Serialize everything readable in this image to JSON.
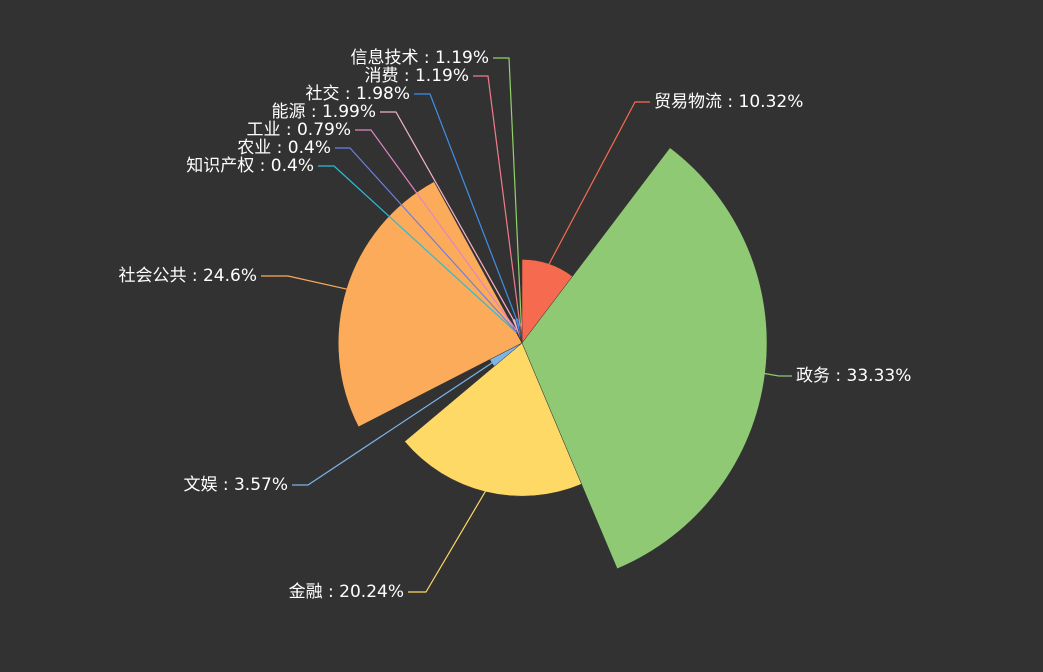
{
  "chart_data": {
    "type": "pie",
    "variant": "nightingale-rose-radius",
    "label_separator": " : ",
    "background": "#333233",
    "slices": [
      {
        "name": "贸易物流",
        "value": 10.32,
        "label": "10.32%",
        "color": "#f66b4f"
      },
      {
        "name": "政务",
        "value": 33.33,
        "label": "33.33%",
        "color": "#8fc974"
      },
      {
        "name": "金融",
        "value": 20.24,
        "label": "20.24%",
        "color": "#ffd966"
      },
      {
        "name": "文娱",
        "value": 3.57,
        "label": "3.57%",
        "color": "#7db4e6"
      },
      {
        "name": "社会公共",
        "value": 24.6,
        "label": "24.6%",
        "color": "#fbab59"
      },
      {
        "name": "知识产权",
        "value": 0.4,
        "label": "0.4%",
        "color": "#2bbbd8"
      },
      {
        "name": "农业",
        "value": 0.4,
        "label": "0.4%",
        "color": "#6f7fe0"
      },
      {
        "name": "工业",
        "value": 0.79,
        "label": "0.79%",
        "color": "#e085c8"
      },
      {
        "name": "能源",
        "value": 1.99,
        "label": "1.99%",
        "color": "#f5b3c8"
      },
      {
        "name": "社交",
        "value": 1.98,
        "label": "1.98%",
        "color": "#3d8fe8"
      },
      {
        "name": "消费",
        "value": 1.19,
        "label": "1.19%",
        "color": "#f07c8a"
      },
      {
        "name": "信息技术",
        "value": 1.19,
        "label": "1.19%",
        "color": "#8fd26a"
      }
    ]
  }
}
